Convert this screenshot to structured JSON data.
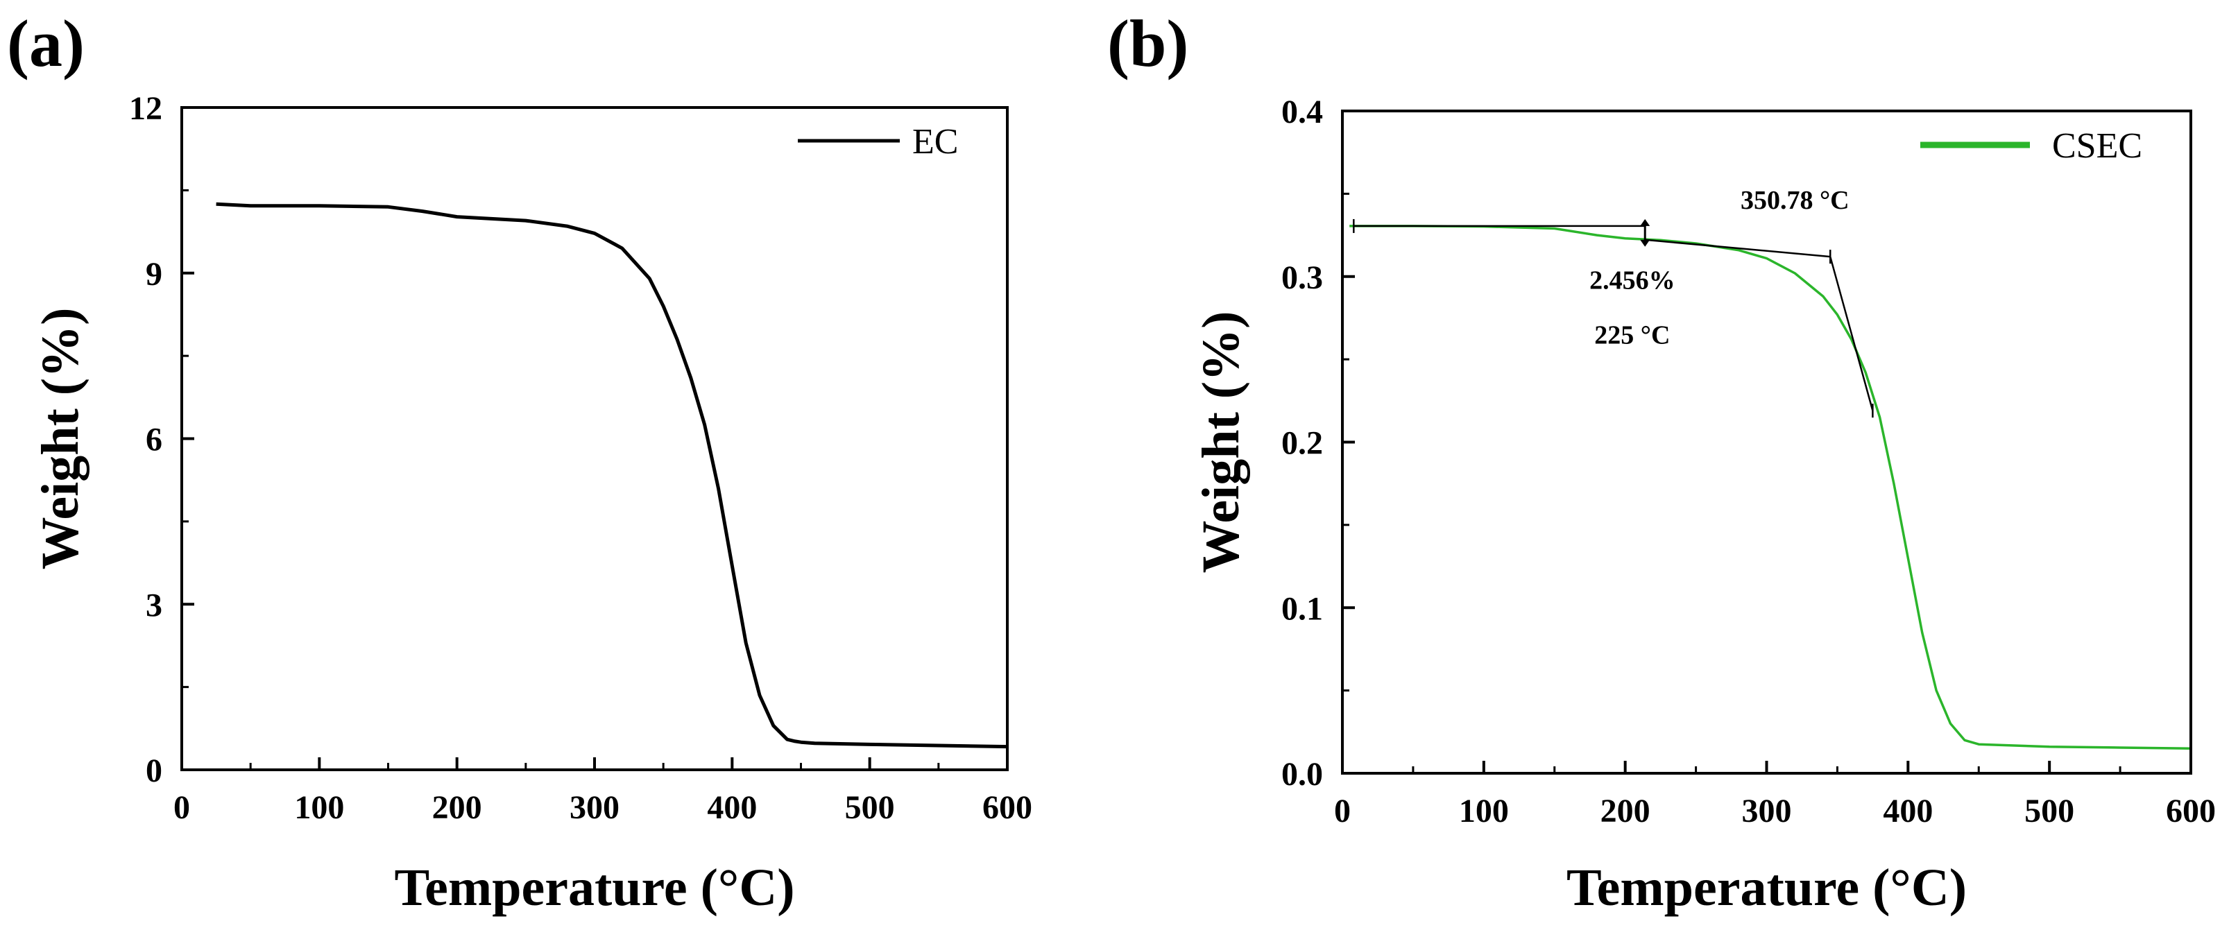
{
  "figure": {
    "panels": [
      "(a)",
      "(b)"
    ]
  },
  "chart_data": [
    {
      "panel": "(a)",
      "type": "line",
      "title": "",
      "xlabel": "Temperature (°C)",
      "ylabel": "Weight (%)",
      "xlim": [
        0,
        600
      ],
      "ylim": [
        0,
        12
      ],
      "xticks": [
        0,
        100,
        200,
        300,
        400,
        500,
        600
      ],
      "yticks": [
        0,
        3,
        6,
        9,
        12
      ],
      "ytick_labels": [
        "0",
        "3",
        "6",
        "9",
        "12"
      ],
      "legend": {
        "position": "top-right"
      },
      "series": [
        {
          "name": "EC",
          "color": "#000000",
          "x": [
            25,
            50,
            100,
            150,
            175,
            200,
            250,
            280,
            300,
            320,
            340,
            350,
            360,
            370,
            380,
            390,
            400,
            410,
            420,
            430,
            440,
            445,
            450,
            460,
            500,
            550,
            600
          ],
          "y": [
            10.25,
            10.22,
            10.22,
            10.2,
            10.12,
            10.02,
            9.95,
            9.85,
            9.72,
            9.45,
            8.9,
            8.4,
            7.8,
            7.1,
            6.25,
            5.1,
            3.7,
            2.3,
            1.35,
            0.8,
            0.55,
            0.52,
            0.5,
            0.48,
            0.46,
            0.44,
            0.42
          ]
        }
      ]
    },
    {
      "panel": "(b)",
      "type": "line",
      "title": "",
      "xlabel": "Temperature (°C)",
      "ylabel": "Weight (%)",
      "xlim": [
        0,
        600
      ],
      "ylim": [
        0,
        0.4
      ],
      "xticks": [
        0,
        100,
        200,
        300,
        400,
        500,
        600
      ],
      "yticks": [
        0,
        0.1,
        0.2,
        0.3,
        0.4
      ],
      "ytick_labels": [
        "0.0",
        "0.1",
        "0.2",
        "0.3",
        "0.4"
      ],
      "legend": {
        "position": "top-right"
      },
      "series": [
        {
          "name": "CSEC",
          "color": "#2bb52b",
          "x": [
            5,
            50,
            100,
            150,
            180,
            200,
            225,
            250,
            280,
            300,
            320,
            340,
            350,
            360,
            370,
            380,
            390,
            400,
            410,
            420,
            430,
            440,
            450,
            500,
            550,
            600
          ],
          "y": [
            0.3305,
            0.3305,
            0.3302,
            0.329,
            0.325,
            0.323,
            0.322,
            0.32,
            0.316,
            0.311,
            0.302,
            0.288,
            0.277,
            0.262,
            0.242,
            0.215,
            0.175,
            0.13,
            0.085,
            0.05,
            0.03,
            0.02,
            0.0175,
            0.016,
            0.0155,
            0.015
          ]
        }
      ],
      "annotations": {
        "onset_label": "350.78 °C",
        "weight_loss_label": "2.456%",
        "temp_label": "225 °C",
        "baseline_line": {
          "x": [
            8,
            214
          ],
          "y": [
            0.3305,
            0.3305
          ]
        },
        "tangent_1": {
          "x": [
            214,
            345
          ],
          "y": [
            0.3222,
            0.312
          ]
        },
        "tangent_2": {
          "x": [
            345,
            375
          ],
          "y": [
            0.312,
            0.219
          ]
        },
        "vertical_marker": {
          "x": 214,
          "y": [
            0.3222,
            0.3305
          ]
        }
      }
    }
  ]
}
